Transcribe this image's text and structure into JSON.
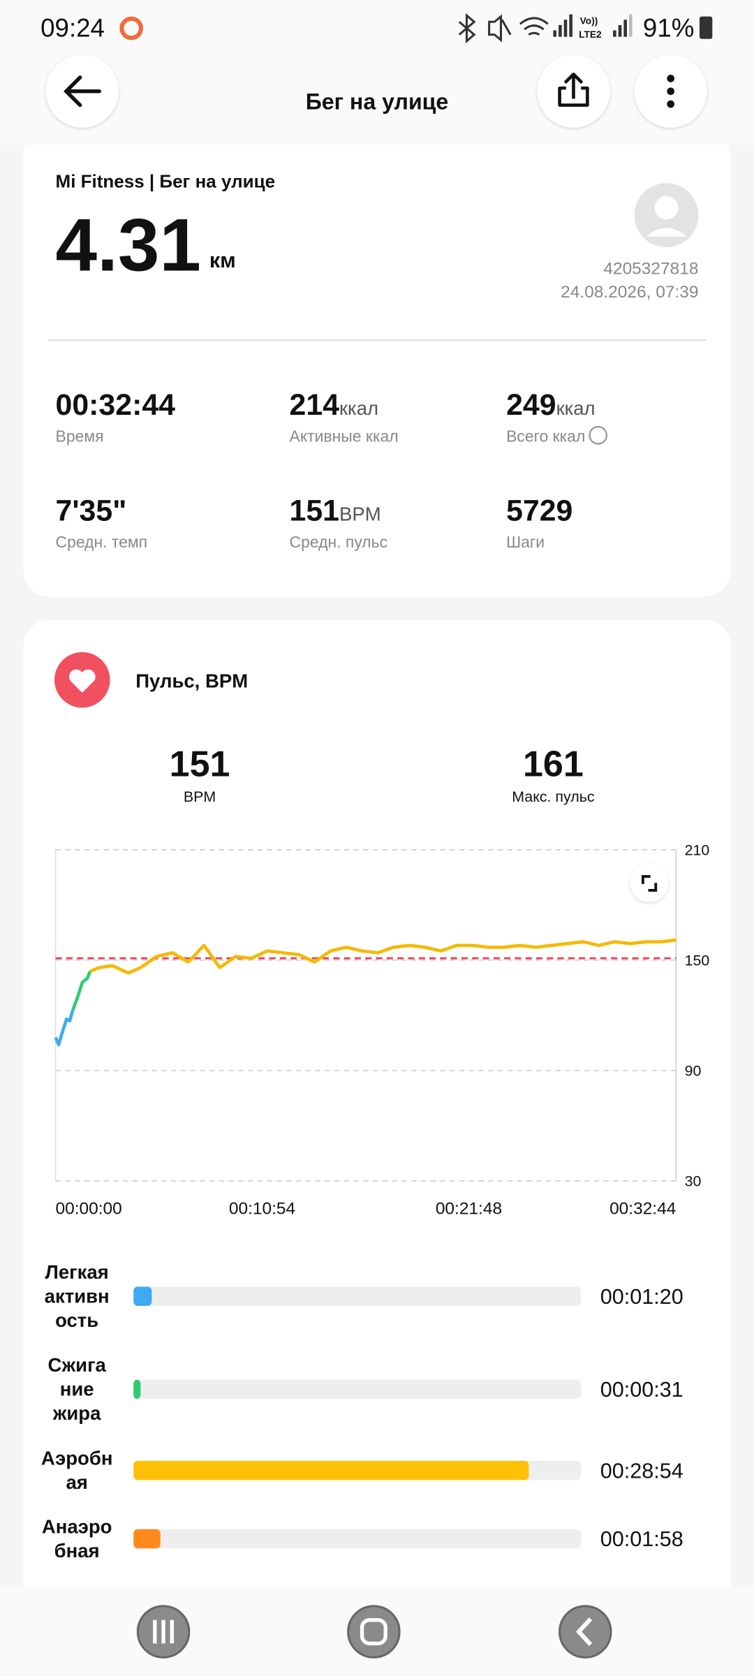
{
  "status_bar": {
    "time": "09:24",
    "volte": "Vo))",
    "lte": "LTE2",
    "battery": "91%"
  },
  "header": {
    "title": "Бег на улице"
  },
  "summary": {
    "source": "Mi Fitness | Бег на улице",
    "distance": "4.31",
    "distance_unit": "км",
    "user_id": "4205327818",
    "datetime": "24.08.2026, 07:39",
    "stats": [
      {
        "value": "00:32:44",
        "label": "Время"
      },
      {
        "value": "214",
        "unit": "ккал",
        "label": "Активные ккал"
      },
      {
        "value": "249",
        "unit": "ккал",
        "label": "Всего ккал"
      },
      {
        "value": "7'35\"",
        "label": "Средн. темп"
      },
      {
        "value": "151",
        "unit": "BPM",
        "label": "Средн. пульс"
      },
      {
        "value": "5729",
        "label": "Шаги"
      }
    ]
  },
  "heart_rate": {
    "title": "Пульс, BPM",
    "avg": "151",
    "avg_label": "BPM",
    "max": "161",
    "max_label": "Макс. пульс"
  },
  "chart_data": {
    "type": "line",
    "x": [
      0,
      10,
      20,
      35,
      45,
      55,
      70,
      85,
      100,
      110,
      140,
      180,
      230,
      270,
      320,
      370,
      420,
      470,
      520,
      570,
      620,
      670,
      720,
      770,
      820,
      870,
      920,
      970,
      1020,
      1070,
      1120,
      1170,
      1220,
      1270,
      1320,
      1370,
      1420,
      1470,
      1520,
      1570,
      1620,
      1670,
      1720,
      1770,
      1820,
      1870,
      1920,
      1964
    ],
    "series": [
      {
        "color": "#3fa9f5",
        "values": [
          108,
          104,
          110,
          118,
          117,
          123,
          null,
          null,
          null,
          null,
          null,
          null,
          null,
          null,
          null,
          null,
          null,
          null,
          null,
          null,
          null,
          null,
          null,
          null,
          null,
          null,
          null,
          null,
          null,
          null,
          null,
          null,
          null,
          null,
          null,
          null,
          null,
          null,
          null,
          null,
          null,
          null,
          null,
          null,
          null,
          null,
          null,
          null
        ]
      },
      {
        "color": "#2ecc71",
        "values": [
          null,
          null,
          null,
          null,
          null,
          123,
          130,
          138,
          140,
          144,
          null,
          null,
          null,
          null,
          null,
          null,
          null,
          null,
          null,
          null,
          null,
          null,
          null,
          null,
          null,
          null,
          null,
          null,
          null,
          null,
          null,
          null,
          null,
          null,
          null,
          null,
          null,
          null,
          null,
          null,
          null,
          null,
          null,
          null,
          null,
          null,
          null,
          null
        ]
      },
      {
        "color": "#f5b800",
        "values": [
          null,
          null,
          null,
          null,
          null,
          null,
          null,
          null,
          null,
          144,
          146,
          147,
          143,
          146,
          152,
          154,
          149,
          158,
          146,
          152,
          151,
          155,
          154,
          153,
          149,
          155,
          157,
          155,
          154,
          157,
          158,
          157,
          155,
          158,
          158,
          157,
          157,
          158,
          157,
          158,
          159,
          160,
          158,
          160,
          159,
          160,
          160,
          161
        ]
      }
    ],
    "xlim": [
      0,
      1964
    ],
    "xticks": [
      {
        "value": 0,
        "label": "00:00:00"
      },
      {
        "value": 654,
        "label": "00:10:54"
      },
      {
        "value": 1308,
        "label": "00:21:48"
      },
      {
        "value": 1964,
        "label": "00:32:44"
      }
    ],
    "ylim": [
      30,
      210
    ],
    "yticks": [
      30,
      90,
      150,
      210
    ],
    "grid": true,
    "reference_line": {
      "value": 151,
      "color": "#e8485a"
    }
  },
  "zones": {
    "categories": [
      [
        "Легкая",
        "активн",
        "ость"
      ],
      [
        "Сжига",
        "ние",
        "жира"
      ],
      [
        "Аэробн",
        "ая"
      ],
      [
        "Анаэро",
        "бная"
      ]
    ],
    "values": [
      80,
      31,
      1734,
      118
    ],
    "value_labels": [
      "00:01:20",
      "00:00:31",
      "00:28:54",
      "00:01:58"
    ],
    "colors": [
      "#3fa9f5",
      "#2ecc71",
      "#ffc107",
      "#ff8a1c"
    ]
  }
}
